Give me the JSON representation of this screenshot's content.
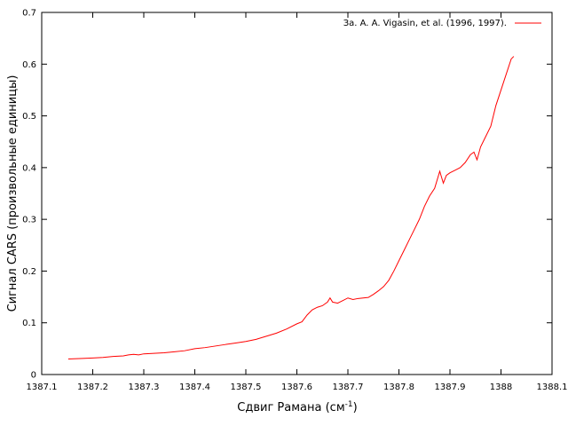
{
  "chart_data": {
    "type": "line",
    "title": "",
    "xlabel_main": "Сдвиг Рамана (см",
    "xlabel_sup": "-1",
    "xlabel_end": ")",
    "ylabel": "Сигнал CARS (произвольные единицы)",
    "xlim": [
      1387.1,
      1388.1
    ],
    "ylim": [
      0,
      0.7
    ],
    "x_ticks": [
      "1387.1",
      "1387.2",
      "1387.3",
      "1387.4",
      "1387.5",
      "1387.6",
      "1387.7",
      "1387.8",
      "1387.9",
      "1388",
      "1388.1"
    ],
    "y_ticks": [
      "0",
      "0.1",
      "0.2",
      "0.3",
      "0.4",
      "0.5",
      "0.6",
      "0.7"
    ],
    "grid": false,
    "legend_position": "top-right",
    "series": [
      {
        "name": "За. A. A. Vigasin, et al. (1996, 1997).",
        "color": "#ff0000",
        "x": [
          1387.152,
          1387.18,
          1387.2,
          1387.22,
          1387.24,
          1387.26,
          1387.27,
          1387.28,
          1387.29,
          1387.3,
          1387.32,
          1387.34,
          1387.36,
          1387.38,
          1387.4,
          1387.42,
          1387.44,
          1387.46,
          1387.48,
          1387.5,
          1387.52,
          1387.54,
          1387.56,
          1387.58,
          1387.6,
          1387.61,
          1387.62,
          1387.63,
          1387.64,
          1387.65,
          1387.66,
          1387.665,
          1387.67,
          1387.68,
          1387.69,
          1387.7,
          1387.71,
          1387.72,
          1387.73,
          1387.74,
          1387.75,
          1387.76,
          1387.77,
          1387.78,
          1387.79,
          1387.8,
          1387.81,
          1387.82,
          1387.83,
          1387.84,
          1387.85,
          1387.86,
          1387.87,
          1387.88,
          1387.887,
          1387.893,
          1387.9,
          1387.91,
          1387.92,
          1387.93,
          1387.94,
          1387.947,
          1387.953,
          1387.96,
          1387.97,
          1387.98,
          1387.99,
          1388.0,
          1388.01,
          1388.02,
          1388.025
        ],
        "values": [
          0.03,
          0.031,
          0.032,
          0.033,
          0.035,
          0.036,
          0.038,
          0.039,
          0.038,
          0.04,
          0.041,
          0.042,
          0.044,
          0.046,
          0.05,
          0.052,
          0.055,
          0.058,
          0.061,
          0.064,
          0.068,
          0.074,
          0.08,
          0.088,
          0.098,
          0.102,
          0.115,
          0.125,
          0.13,
          0.133,
          0.14,
          0.148,
          0.14,
          0.138,
          0.143,
          0.148,
          0.145,
          0.147,
          0.148,
          0.149,
          0.155,
          0.162,
          0.17,
          0.182,
          0.2,
          0.22,
          0.24,
          0.26,
          0.28,
          0.3,
          0.325,
          0.345,
          0.36,
          0.393,
          0.37,
          0.385,
          0.39,
          0.395,
          0.4,
          0.41,
          0.425,
          0.43,
          0.415,
          0.44,
          0.46,
          0.48,
          0.52,
          0.55,
          0.58,
          0.61,
          0.615
        ]
      }
    ]
  }
}
